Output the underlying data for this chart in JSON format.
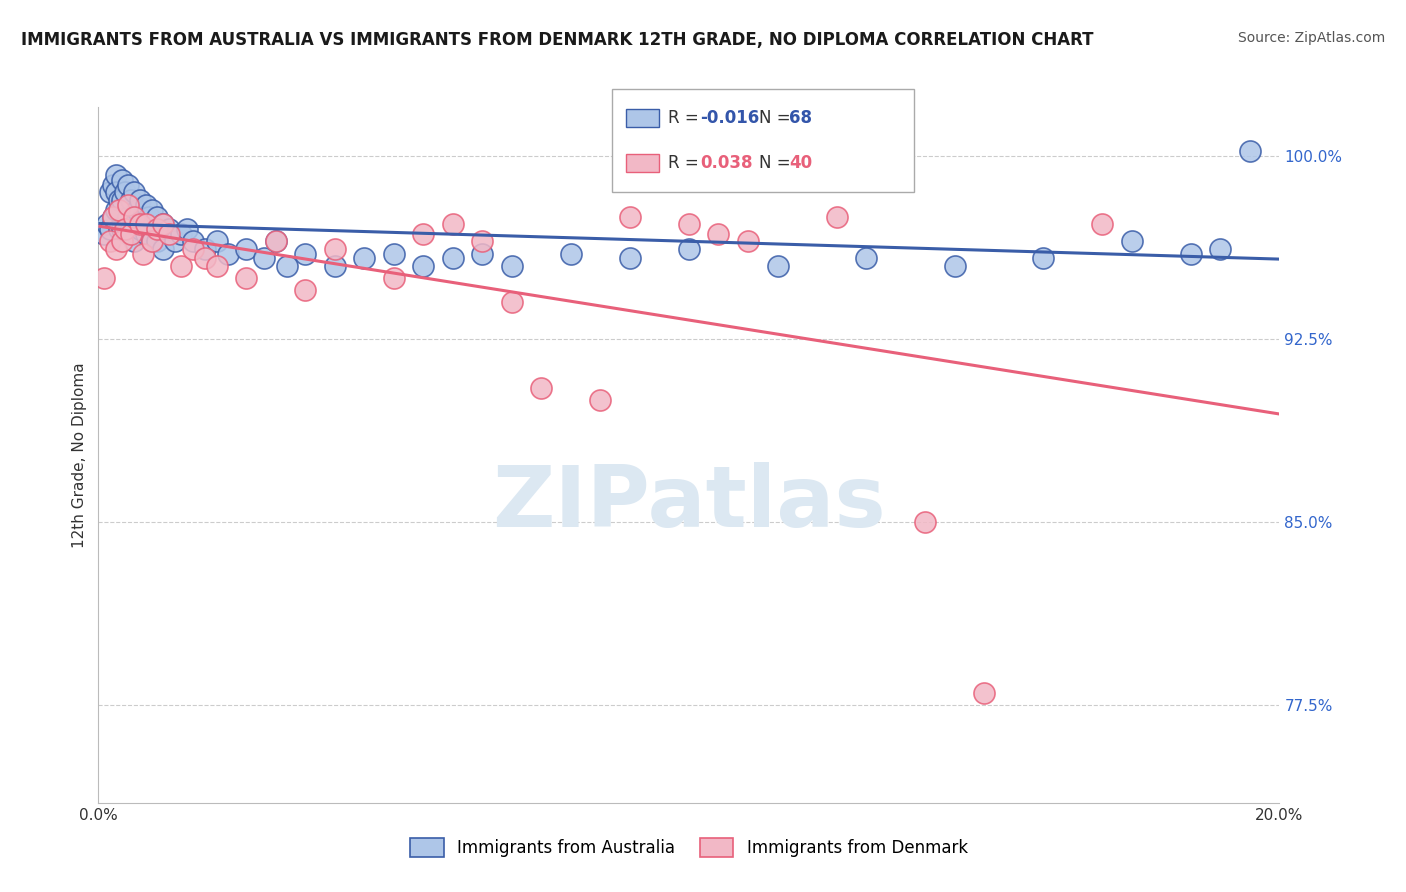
{
  "title": "IMMIGRANTS FROM AUSTRALIA VS IMMIGRANTS FROM DENMARK 12TH GRADE, NO DIPLOMA CORRELATION CHART",
  "source": "Source: ZipAtlas.com",
  "ylabel": "12th Grade, No Diploma",
  "xmin": 0.0,
  "xmax": 20.0,
  "ymin": 73.5,
  "ymax": 102.0,
  "australia_R": -0.016,
  "australia_N": 68,
  "denmark_R": 0.038,
  "denmark_N": 40,
  "australia_color": "#aec6e8",
  "denmark_color": "#f2b8c6",
  "australia_line_color": "#3a5da8",
  "denmark_line_color": "#e8607a",
  "watermark": "ZIPatlas",
  "watermark_color": "#dce8f2",
  "background_color": "#ffffff",
  "grid_color": "#cccccc",
  "ytick_vals": [
    77.5,
    85.0,
    92.5,
    100.0
  ],
  "ytick_labels": [
    "77.5%",
    "85.0%",
    "92.5%",
    "100.0%"
  ],
  "australia_x": [
    0.1,
    0.15,
    0.2,
    0.2,
    0.25,
    0.25,
    0.3,
    0.3,
    0.3,
    0.35,
    0.35,
    0.4,
    0.4,
    0.4,
    0.45,
    0.45,
    0.5,
    0.5,
    0.5,
    0.55,
    0.55,
    0.6,
    0.6,
    0.6,
    0.65,
    0.7,
    0.7,
    0.75,
    0.8,
    0.8,
    0.85,
    0.9,
    0.9,
    1.0,
    1.0,
    1.1,
    1.1,
    1.2,
    1.3,
    1.4,
    1.5,
    1.6,
    1.8,
    2.0,
    2.2,
    2.5,
    2.8,
    3.0,
    3.2,
    3.5,
    4.0,
    4.5,
    5.0,
    5.5,
    6.0,
    6.5,
    7.0,
    8.0,
    9.0,
    10.0,
    11.5,
    13.0,
    14.5,
    16.0,
    17.5,
    18.5,
    19.0,
    19.5
  ],
  "australia_y": [
    96.8,
    97.2,
    98.5,
    97.0,
    98.8,
    97.5,
    99.2,
    98.5,
    97.8,
    98.2,
    97.0,
    99.0,
    98.2,
    97.0,
    98.5,
    97.2,
    98.8,
    97.5,
    96.8,
    98.2,
    97.0,
    98.5,
    97.5,
    96.5,
    97.8,
    98.2,
    97.0,
    97.5,
    98.0,
    96.8,
    97.5,
    97.8,
    96.5,
    97.5,
    96.5,
    97.2,
    96.2,
    97.0,
    96.5,
    96.8,
    97.0,
    96.5,
    96.2,
    96.5,
    96.0,
    96.2,
    95.8,
    96.5,
    95.5,
    96.0,
    95.5,
    95.8,
    96.0,
    95.5,
    95.8,
    96.0,
    95.5,
    96.0,
    95.8,
    96.2,
    95.5,
    95.8,
    95.5,
    95.8,
    96.5,
    96.0,
    96.2,
    100.2
  ],
  "denmark_x": [
    0.1,
    0.2,
    0.25,
    0.3,
    0.35,
    0.4,
    0.45,
    0.5,
    0.55,
    0.6,
    0.7,
    0.75,
    0.8,
    0.9,
    1.0,
    1.1,
    1.2,
    1.4,
    1.6,
    1.8,
    2.0,
    2.5,
    3.0,
    3.5,
    4.0,
    5.0,
    5.5,
    6.0,
    6.5,
    7.0,
    7.5,
    8.5,
    9.0,
    10.0,
    10.5,
    11.0,
    12.5,
    14.0,
    15.0,
    17.0
  ],
  "denmark_y": [
    95.0,
    96.5,
    97.5,
    96.2,
    97.8,
    96.5,
    97.0,
    98.0,
    96.8,
    97.5,
    97.2,
    96.0,
    97.2,
    96.5,
    97.0,
    97.2,
    96.8,
    95.5,
    96.2,
    95.8,
    95.5,
    95.0,
    96.5,
    94.5,
    96.2,
    95.0,
    96.8,
    97.2,
    96.5,
    94.0,
    90.5,
    90.0,
    97.5,
    97.2,
    96.8,
    96.5,
    97.5,
    85.0,
    78.0,
    97.2
  ]
}
